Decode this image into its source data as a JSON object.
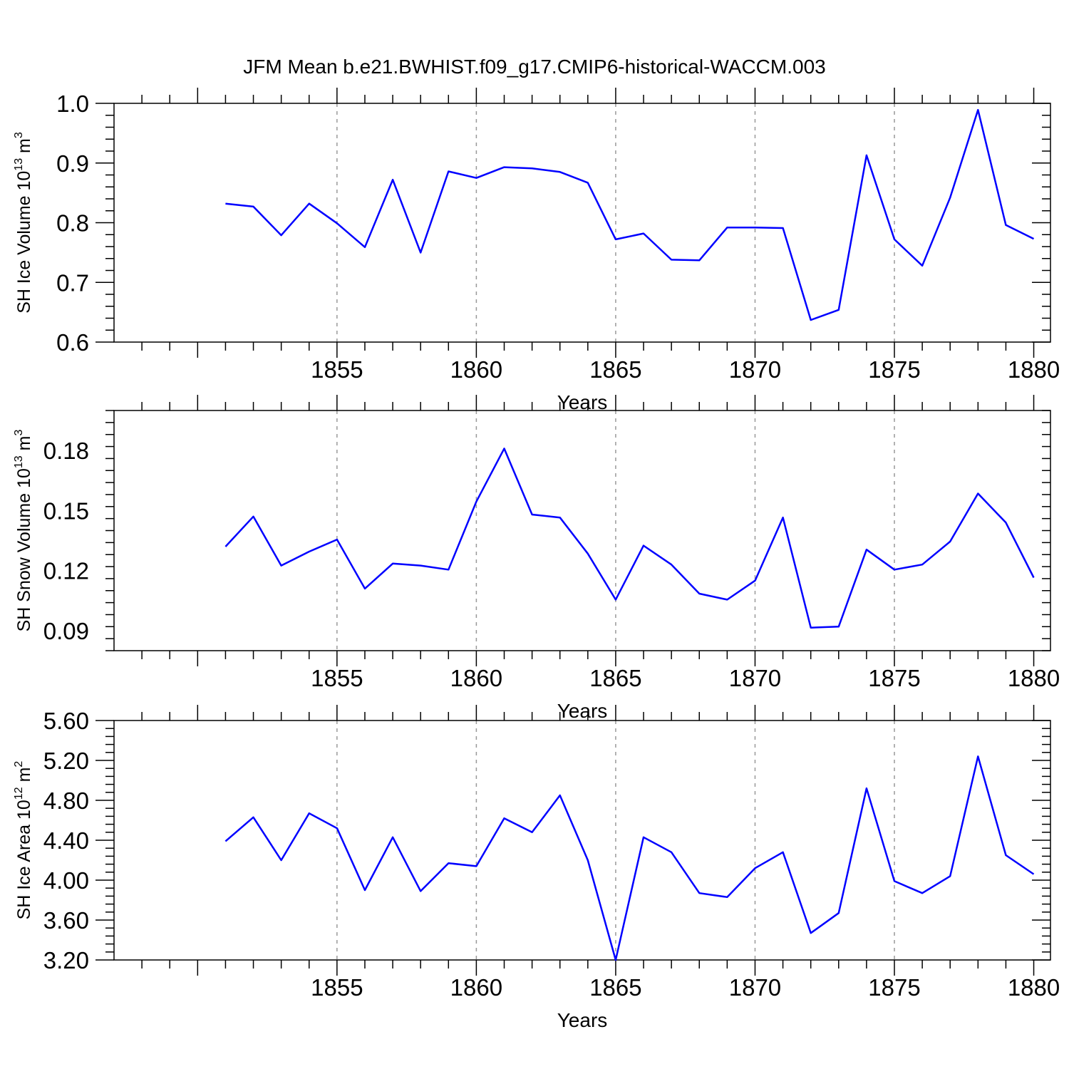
{
  "title": "JFM Mean b.e21.BWHIST.f09_g17.CMIP6-historical-WACCM.003",
  "colors": {
    "series": "#0000ff",
    "axis": "#000000",
    "grid": "#999999"
  },
  "chart_data": [
    {
      "type": "line",
      "title": "JFM Mean b.e21.BWHIST.f09_g17.CMIP6-historical-WACCM.003",
      "xlabel": "Years",
      "ylabel": {
        "text": "SH Ice Volume 10",
        "exp": "13",
        "unit": " m",
        "unit_exp": "3"
      },
      "x": [
        1851,
        1852,
        1853,
        1854,
        1855,
        1856,
        1857,
        1858,
        1859,
        1860,
        1861,
        1862,
        1863,
        1864,
        1865,
        1866,
        1867,
        1868,
        1869,
        1870,
        1871,
        1872,
        1873,
        1874,
        1875,
        1876,
        1877,
        1878,
        1879,
        1880
      ],
      "values": [
        0.832,
        0.827,
        0.779,
        0.832,
        0.799,
        0.759,
        0.872,
        0.75,
        0.886,
        0.875,
        0.893,
        0.891,
        0.885,
        0.867,
        0.772,
        0.782,
        0.738,
        0.737,
        0.792,
        0.792,
        0.791,
        0.637,
        0.654,
        0.913,
        0.772,
        0.728,
        0.842,
        0.989,
        0.796,
        0.773
      ],
      "xlim": [
        1847,
        1880
      ],
      "ylim": [
        0.6,
        1.0
      ],
      "x_ticks": [
        "1855",
        "1860",
        "1865",
        "1870",
        "1875",
        "1880"
      ],
      "y_ticks": [
        "0.6",
        "0.7",
        "0.8",
        "0.9",
        "1.0"
      ]
    },
    {
      "type": "line",
      "xlabel": "Years",
      "ylabel": {
        "text": "SH Snow Volume 10",
        "exp": "13",
        "unit": " m",
        "unit_exp": "3"
      },
      "x": [
        1851,
        1852,
        1853,
        1854,
        1855,
        1856,
        1857,
        1858,
        1859,
        1860,
        1861,
        1862,
        1863,
        1864,
        1865,
        1866,
        1867,
        1868,
        1869,
        1870,
        1871,
        1872,
        1873,
        1874,
        1875,
        1876,
        1877,
        1878,
        1879,
        1880
      ],
      "values": [
        0.132,
        0.147,
        0.1225,
        0.1295,
        0.1355,
        0.111,
        0.1235,
        0.1225,
        0.1205,
        0.1545,
        0.181,
        0.148,
        0.1465,
        0.1285,
        0.1055,
        0.1325,
        0.123,
        0.1085,
        0.1055,
        0.115,
        0.1465,
        0.0915,
        0.092,
        0.1305,
        0.1205,
        0.123,
        0.1345,
        0.1585,
        0.144,
        0.1165
      ],
      "xlim": [
        1847,
        1880
      ],
      "ylim": [
        0.08,
        0.2
      ],
      "x_ticks": [
        "1855",
        "1860",
        "1865",
        "1870",
        "1875",
        "1880"
      ],
      "y_ticks": [
        "0.09",
        "0.12",
        "0.15",
        "0.18"
      ]
    },
    {
      "type": "line",
      "xlabel": "Years",
      "ylabel": {
        "text": "SH Ice Area 10",
        "exp": "12",
        "unit": " m",
        "unit_exp": "2"
      },
      "x": [
        1851,
        1852,
        1853,
        1854,
        1855,
        1856,
        1857,
        1858,
        1859,
        1860,
        1861,
        1862,
        1863,
        1864,
        1865,
        1866,
        1867,
        1868,
        1869,
        1870,
        1871,
        1872,
        1873,
        1874,
        1875,
        1876,
        1877,
        1878,
        1879,
        1880
      ],
      "values": [
        4.39,
        4.63,
        4.2,
        4.67,
        4.52,
        3.9,
        4.43,
        3.89,
        4.17,
        4.14,
        4.62,
        4.48,
        4.85,
        4.2,
        3.2,
        4.43,
        4.28,
        3.87,
        3.83,
        4.12,
        4.28,
        3.47,
        3.67,
        4.92,
        3.99,
        3.87,
        4.04,
        5.24,
        4.25,
        4.06
      ],
      "xlim": [
        1847,
        1880
      ],
      "ylim": [
        3.2,
        5.6
      ],
      "x_ticks": [
        "1855",
        "1860",
        "1865",
        "1870",
        "1875",
        "1880"
      ],
      "y_ticks": [
        "3.20",
        "3.60",
        "4.00",
        "4.40",
        "4.80",
        "5.20",
        "5.60"
      ]
    }
  ]
}
